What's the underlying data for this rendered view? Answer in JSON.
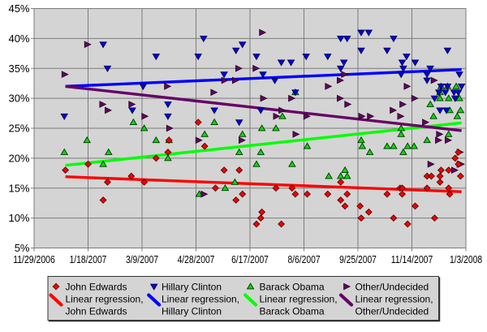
{
  "figure": {
    "background": "#ffffff",
    "plot_background": "#d4d4d4",
    "grid_color": "#7d7d7d",
    "legend_border_color": "#333333",
    "text_color": "#000000"
  },
  "chart_data": {
    "type": "scatter",
    "title": "",
    "xlabel": "",
    "ylabel": "",
    "grid": true,
    "legend_position": "bottom",
    "x_axis": {
      "start_date": "11/29/2006",
      "end_date": "1/3/2008",
      "tick_labels": [
        "11/29/2006",
        "1/18/2007",
        "3/9/2007",
        "4/28/2007",
        "6/17/2007",
        "8/6/2007",
        "9/25/2007",
        "11/14/2007",
        "1/3/2008"
      ]
    },
    "y_axis": {
      "min": 5,
      "max": 45,
      "step": 5,
      "suffix": "%",
      "tick_labels": [
        "45%",
        "40%",
        "35%",
        "30%",
        "25%",
        "20%",
        "15%",
        "10%",
        "5%"
      ]
    },
    "series": [
      {
        "name": "John Edwards",
        "marker": "diamond",
        "color": "#f40000",
        "edge_color": "#550000",
        "points": [
          [
            "12/28/2006",
            18
          ],
          [
            "1/18/2007",
            19
          ],
          [
            "2/1/2007",
            13
          ],
          [
            "2/5/2007",
            16
          ],
          [
            "2/27/2007",
            17
          ],
          [
            "3/11/2007",
            16
          ],
          [
            "3/22/2007",
            20
          ],
          [
            "4/2/2007",
            21
          ],
          [
            "4/3/2007",
            23
          ],
          [
            "4/30/2007",
            26
          ],
          [
            "5/6/2007",
            22
          ],
          [
            "5/16/2007",
            15
          ],
          [
            "5/24/2007",
            18
          ],
          [
            "6/4/2007",
            13
          ],
          [
            "6/7/2007",
            18
          ],
          [
            "6/10/2007",
            14
          ],
          [
            "6/23/2007",
            9
          ],
          [
            "6/27/2007",
            10
          ],
          [
            "6/28/2007",
            11
          ],
          [
            "7/11/2007",
            15
          ],
          [
            "7/16/2007",
            9
          ],
          [
            "7/26/2007",
            15
          ],
          [
            "7/29/2007",
            14
          ],
          [
            "8/9/2007",
            14
          ],
          [
            "8/28/2007",
            14
          ],
          [
            "9/9/2007",
            16
          ],
          [
            "9/9/2007",
            13
          ],
          [
            "9/13/2007",
            12
          ],
          [
            "9/15/2007",
            14
          ],
          [
            "9/27/2007",
            12
          ],
          [
            "9/28/2007",
            10
          ],
          [
            "10/5/2007",
            11
          ],
          [
            "10/22/2007",
            14
          ],
          [
            "10/28/2007",
            10
          ],
          [
            "11/3/2007",
            15
          ],
          [
            "11/5/2007",
            15
          ],
          [
            "11/5/2007",
            14
          ],
          [
            "11/10/2007",
            9
          ],
          [
            "11/17/2007",
            12
          ],
          [
            "11/28/2007",
            17
          ],
          [
            "11/28/2007",
            15
          ],
          [
            "12/2/2007",
            17
          ],
          [
            "12/5/2007",
            10
          ],
          [
            "12/10/2007",
            17
          ],
          [
            "12/10/2007",
            16
          ],
          [
            "12/11/2007",
            18
          ],
          [
            "12/18/2007",
            18
          ],
          [
            "12/18/2007",
            15
          ],
          [
            "12/19/2007",
            14
          ],
          [
            "12/24/2007",
            20
          ],
          [
            "12/27/2007",
            19
          ],
          [
            "12/27/2007",
            21
          ],
          [
            "12/29/2007",
            17
          ]
        ]
      },
      {
        "name": "Hillary Clinton",
        "marker": "triangle-down",
        "color": "#0000ee",
        "edge_color": "#000044",
        "points": [
          [
            "12/27/2006",
            27
          ],
          [
            "2/1/2007",
            39
          ],
          [
            "2/5/2007",
            35
          ],
          [
            "2/28/2007",
            28
          ],
          [
            "3/10/2007",
            32
          ],
          [
            "3/22/2007",
            37
          ],
          [
            "4/2/2007",
            29
          ],
          [
            "4/2/2007",
            27
          ],
          [
            "4/30/2007",
            37
          ],
          [
            "5/5/2007",
            40
          ],
          [
            "5/15/2007",
            28
          ],
          [
            "5/24/2007",
            34
          ],
          [
            "6/4/2007",
            38
          ],
          [
            "6/7/2007",
            26
          ],
          [
            "6/10/2007",
            39
          ],
          [
            "6/23/2007",
            37
          ],
          [
            "6/27/2007",
            28
          ],
          [
            "6/29/2007",
            34
          ],
          [
            "7/10/2007",
            33
          ],
          [
            "7/16/2007",
            36
          ],
          [
            "7/25/2007",
            36
          ],
          [
            "7/29/2007",
            31
          ],
          [
            "8/8/2007",
            37
          ],
          [
            "8/28/2007",
            37
          ],
          [
            "9/9/2007",
            40
          ],
          [
            "9/9/2007",
            35
          ],
          [
            "9/12/2007",
            36
          ],
          [
            "9/15/2007",
            40
          ],
          [
            "9/28/2007",
            41
          ],
          [
            "9/28/2007",
            38
          ],
          [
            "10/5/2007",
            41
          ],
          [
            "10/22/2007",
            38
          ],
          [
            "10/28/2007",
            40
          ],
          [
            "11/4/2007",
            34
          ],
          [
            "11/5/2007",
            36
          ],
          [
            "11/6/2007",
            35
          ],
          [
            "11/9/2007",
            37
          ],
          [
            "11/17/2007",
            36
          ],
          [
            "11/28/2007",
            34
          ],
          [
            "11/28/2007",
            33
          ],
          [
            "12/1/2007",
            35
          ],
          [
            "12/5/2007",
            30
          ],
          [
            "12/9/2007",
            31
          ],
          [
            "12/10/2007",
            28
          ],
          [
            "12/11/2007",
            32
          ],
          [
            "12/15/2007",
            31
          ],
          [
            "12/16/2007",
            28
          ],
          [
            "12/17/2007",
            32
          ],
          [
            "12/17/2007",
            38
          ],
          [
            "12/23/2007",
            31
          ],
          [
            "12/24/2007",
            30
          ],
          [
            "12/27/2007",
            31
          ],
          [
            "12/28/2007",
            34
          ],
          [
            "12/30/2007",
            32
          ]
        ]
      },
      {
        "name": "Barack Obama",
        "marker": "triangle-up",
        "color": "#00dd00",
        "edge_color": "#003300",
        "points": [
          [
            "12/27/2006",
            21
          ],
          [
            "1/17/2007",
            23
          ],
          [
            "2/1/2007",
            19
          ],
          [
            "2/6/2007",
            21
          ],
          [
            "3/1/2007",
            26
          ],
          [
            "3/11/2007",
            25
          ],
          [
            "3/22/2007",
            23
          ],
          [
            "4/2/2007",
            20
          ],
          [
            "4/3/2007",
            23
          ],
          [
            "5/1/2007",
            14
          ],
          [
            "5/6/2007",
            24
          ],
          [
            "5/15/2007",
            26
          ],
          [
            "5/25/2007",
            15
          ],
          [
            "6/3/2007",
            16
          ],
          [
            "6/7/2007",
            21
          ],
          [
            "6/10/2007",
            24
          ],
          [
            "6/23/2007",
            19
          ],
          [
            "6/27/2007",
            21
          ],
          [
            "6/28/2007",
            25
          ],
          [
            "7/11/2007",
            25
          ],
          [
            "7/17/2007",
            27
          ],
          [
            "7/26/2007",
            19
          ],
          [
            "7/29/2007",
            31
          ],
          [
            "8/9/2007",
            22
          ],
          [
            "8/29/2007",
            17
          ],
          [
            "9/9/2007",
            17
          ],
          [
            "9/13/2007",
            18
          ],
          [
            "9/15/2007",
            17
          ],
          [
            "9/28/2007",
            23
          ],
          [
            "9/29/2007",
            22
          ],
          [
            "10/6/2007",
            21
          ],
          [
            "10/22/2007",
            22
          ],
          [
            "10/28/2007",
            22
          ],
          [
            "11/4/2007",
            24
          ],
          [
            "11/4/2007",
            25
          ],
          [
            "11/6/2007",
            21
          ],
          [
            "11/10/2007",
            22
          ],
          [
            "11/16/2007",
            22
          ],
          [
            "11/28/2007",
            23
          ],
          [
            "12/1/2007",
            29
          ],
          [
            "12/4/2007",
            27
          ],
          [
            "12/10/2007",
            30
          ],
          [
            "12/10/2007",
            31
          ],
          [
            "12/11/2007",
            32
          ],
          [
            "12/17/2007",
            32
          ],
          [
            "12/18/2007",
            30
          ],
          [
            "12/18/2007",
            24
          ],
          [
            "12/19/2007",
            28
          ],
          [
            "12/25/2007",
            32
          ],
          [
            "12/26/2007",
            27
          ],
          [
            "12/28/2007",
            30
          ],
          [
            "12/29/2007",
            28
          ]
        ]
      },
      {
        "name": "Other/Undecided",
        "marker": "triangle-right",
        "color": "#660066",
        "edge_color": "#220022",
        "points": [
          [
            "12/27/2006",
            34
          ],
          [
            "1/17/2007",
            39
          ],
          [
            "1/31/2007",
            29
          ],
          [
            "2/5/2007",
            28
          ],
          [
            "2/27/2007",
            29
          ],
          [
            "3/11/2007",
            27
          ],
          [
            "4/1/2007",
            32
          ],
          [
            "4/3/2007",
            25
          ],
          [
            "4/30/2007",
            23
          ],
          [
            "5/5/2007",
            14
          ],
          [
            "5/14/2007",
            31
          ],
          [
            "5/24/2007",
            33
          ],
          [
            "6/3/2007",
            33
          ],
          [
            "6/6/2007",
            35
          ],
          [
            "6/9/2007",
            23
          ],
          [
            "6/22/2007",
            35
          ],
          [
            "6/28/2007",
            41
          ],
          [
            "6/29/2007",
            30
          ],
          [
            "7/11/2007",
            27
          ],
          [
            "7/16/2007",
            28
          ],
          [
            "7/25/2007",
            30
          ],
          [
            "7/29/2007",
            24
          ],
          [
            "8/8/2007",
            27
          ],
          [
            "8/28/2007",
            32
          ],
          [
            "9/8/2007",
            30
          ],
          [
            "9/8/2007",
            33
          ],
          [
            "9/12/2007",
            34
          ],
          [
            "9/15/2007",
            29
          ],
          [
            "9/28/2007",
            27
          ],
          [
            "10/6/2007",
            27
          ],
          [
            "10/27/2007",
            28
          ],
          [
            "11/3/2007",
            27
          ],
          [
            "11/5/2007",
            29
          ],
          [
            "11/9/2007",
            32
          ],
          [
            "11/16/2007",
            30
          ],
          [
            "11/26/2007",
            26
          ],
          [
            "12/1/2007",
            19
          ],
          [
            "12/4/2007",
            33
          ],
          [
            "12/8/2007",
            23
          ],
          [
            "12/9/2007",
            24
          ],
          [
            "12/17/2007",
            23
          ],
          [
            "12/23/2007",
            18
          ],
          [
            "12/28/2007",
            21
          ],
          [
            "12/28/2007",
            19
          ],
          [
            "12/29/2007",
            19
          ]
        ]
      }
    ],
    "regressions": [
      {
        "label_line1": "Linear regression,",
        "label_line2": "John Edwards",
        "color": "#ff0000",
        "start": [
          "12/28/2006",
          16.9
        ],
        "end": [
          "12/30/2007",
          14.4
        ]
      },
      {
        "label_line1": "Linear regression,",
        "label_line2": "Hillary Clinton",
        "color": "#0000ff",
        "start": [
          "12/28/2006",
          32.0
        ],
        "end": [
          "12/30/2007",
          34.8
        ]
      },
      {
        "label_line1": "Linear regression,",
        "label_line2": "Barack Obama",
        "color": "#00ff00",
        "start": [
          "12/28/2006",
          18.8
        ],
        "end": [
          "12/30/2007",
          25.9
        ]
      },
      {
        "label_line1": "Linear regression,",
        "label_line2": "Other/Undecided",
        "color": "#660066",
        "start": [
          "12/28/2006",
          32.0
        ],
        "end": [
          "12/30/2007",
          24.6
        ]
      }
    ]
  }
}
